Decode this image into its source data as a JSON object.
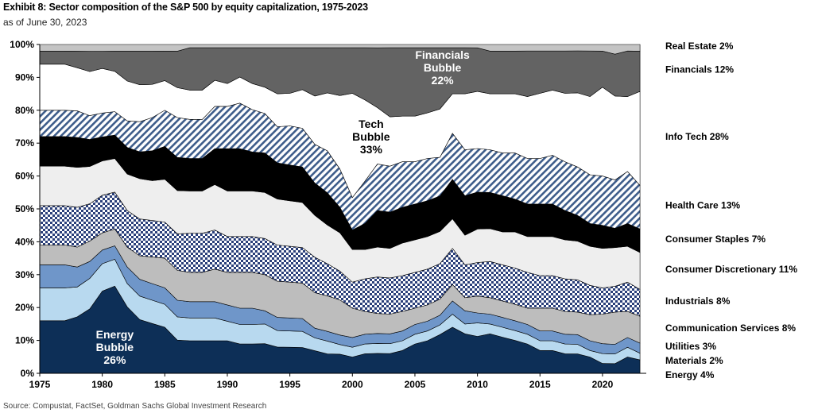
{
  "header": {
    "title": "Exhibit 8: Sector composition of the S&P 500 by equity capitalization, 1975-2023",
    "subtitle": "as of June 30, 2023"
  },
  "footer": {
    "source": "Source: Compustat, FactSet, Goldman Sachs Global Investment Research"
  },
  "chart_data": {
    "type": "area",
    "stacked": true,
    "x_ticks": [
      "1975",
      "1980",
      "1985",
      "1990",
      "1995",
      "2000",
      "2005",
      "2010",
      "2015",
      "2020"
    ],
    "y_ticks": [
      "0%",
      "10%",
      "20%",
      "30%",
      "40%",
      "50%",
      "60%",
      "70%",
      "80%",
      "90%",
      "100%"
    ],
    "xlim": [
      1975,
      2023.5
    ],
    "ylim": [
      0,
      100
    ],
    "legend_position": "right",
    "x": [
      1975,
      1976,
      1977,
      1978,
      1979,
      1980,
      1981,
      1982,
      1983,
      1984,
      1985,
      1986,
      1987,
      1988,
      1989,
      1990,
      1991,
      1992,
      1993,
      1994,
      1995,
      1996,
      1997,
      1998,
      1999,
      2000,
      2001,
      2002,
      2003,
      2004,
      2005,
      2006,
      2007,
      2008,
      2009,
      2010,
      2011,
      2012,
      2013,
      2014,
      2015,
      2016,
      2017,
      2018,
      2019,
      2020,
      2021,
      2022,
      2023
    ],
    "series": [
      {
        "name": "Energy 4%",
        "color": "#0d2f57",
        "pattern": "solid",
        "values": [
          16,
          16,
          16,
          17,
          19,
          24,
          26,
          20,
          16,
          15,
          14,
          10,
          10,
          10,
          10,
          10,
          9,
          9,
          9,
          8,
          8,
          8,
          7,
          6,
          6,
          5,
          6,
          6,
          6,
          7,
          9,
          10,
          12,
          14,
          12,
          11,
          12,
          11,
          10,
          9,
          7,
          7,
          6,
          6,
          5,
          3,
          3,
          5,
          4
        ]
      },
      {
        "name": "Materials 2%",
        "color": "#b8d9ef",
        "pattern": "solid",
        "values": [
          10,
          10,
          10,
          9,
          9,
          8,
          8,
          7,
          7,
          7,
          7,
          7,
          7,
          7,
          7,
          6,
          6,
          6,
          6,
          5,
          5,
          5,
          4,
          4,
          3,
          3,
          3,
          3,
          3,
          3,
          3,
          3,
          3,
          4,
          3,
          4,
          3,
          3,
          3,
          3,
          3,
          3,
          3,
          3,
          2,
          3,
          3,
          3,
          2
        ]
      },
      {
        "name": "Utilities 3%",
        "color": "#6f96c9",
        "pattern": "solid",
        "values": [
          7,
          7,
          7,
          6,
          5,
          4,
          4,
          5,
          5,
          5,
          5,
          5,
          5,
          5,
          5,
          5,
          5,
          5,
          4,
          4,
          4,
          4,
          3,
          3,
          3,
          3,
          3,
          3,
          3,
          3,
          3,
          3,
          3,
          4,
          4,
          3,
          3,
          3,
          3,
          3,
          3,
          3,
          3,
          3,
          3,
          3,
          3,
          3,
          3
        ]
      },
      {
        "name": "Communication Services 8%",
        "color": "#bdbdbd",
        "pattern": "solid",
        "values": [
          6,
          6,
          6,
          6,
          6,
          5,
          5,
          6,
          7,
          8,
          9,
          9,
          9,
          9,
          10,
          10,
          11,
          11,
          11,
          11,
          11,
          11,
          11,
          11,
          11,
          9,
          7,
          6,
          6,
          6,
          5,
          5,
          5,
          5,
          4,
          5,
          5,
          5,
          5,
          5,
          7,
          7,
          7,
          7,
          8,
          9,
          10,
          8,
          8
        ]
      },
      {
        "name": "Industrials 8%",
        "color": "#2a3f7a",
        "pattern": "check",
        "values": [
          12,
          12,
          12,
          12,
          11,
          11,
          11,
          11,
          11,
          11,
          11,
          11,
          12,
          12,
          12,
          11,
          11,
          11,
          11,
          11,
          11,
          11,
          11,
          10,
          9,
          8,
          10,
          11,
          11,
          11,
          11,
          11,
          11,
          11,
          10,
          10,
          11,
          11,
          11,
          11,
          10,
          10,
          10,
          10,
          9,
          8,
          8,
          9,
          8
        ]
      },
      {
        "name": "Consumer Discretionary 11%",
        "color": "#eeeeee",
        "pattern": "solid",
        "values": [
          12,
          12,
          12,
          12,
          11,
          10,
          10,
          11,
          12,
          12,
          13,
          13,
          13,
          13,
          14,
          14,
          14,
          14,
          14,
          14,
          14,
          14,
          13,
          12,
          12,
          10,
          9,
          9,
          9,
          10,
          10,
          10,
          10,
          9,
          9,
          10,
          10,
          10,
          11,
          11,
          12,
          12,
          12,
          12,
          12,
          12,
          12,
          11,
          11
        ]
      },
      {
        "name": "Consumer Staples 7%",
        "color": "#000000",
        "pattern": "solid",
        "values": [
          9,
          9,
          9,
          9,
          8,
          7,
          7,
          8,
          8,
          9,
          10,
          10,
          10,
          10,
          11,
          13,
          13,
          12,
          12,
          11,
          11,
          11,
          10,
          10,
          8,
          6,
          8,
          11,
          11,
          11,
          11,
          11,
          11,
          12,
          12,
          11,
          11,
          11,
          10,
          10,
          10,
          10,
          9,
          8,
          7,
          7,
          6,
          7,
          7
        ]
      },
      {
        "name": "Health Care 13%",
        "color": "#1e3b66",
        "pattern": "stripe",
        "values": [
          8,
          8,
          8,
          8,
          7,
          7,
          7,
          8,
          9,
          10,
          11,
          12,
          12,
          12,
          13,
          13,
          14,
          13,
          12,
          11,
          12,
          12,
          12,
          13,
          12,
          10,
          13,
          14,
          14,
          14,
          13,
          13,
          12,
          14,
          14,
          13,
          13,
          13,
          14,
          14,
          14,
          15,
          15,
          15,
          15,
          15,
          15,
          16,
          13
        ]
      },
      {
        "name": "Info Tech 28%",
        "color": "#ffffff",
        "pattern": "solid",
        "values": [
          14,
          14,
          14,
          13,
          13,
          13,
          12,
          12,
          11,
          10,
          9,
          9,
          9,
          9,
          8,
          7,
          8,
          8,
          8,
          10,
          10,
          12,
          15,
          18,
          23,
          32,
          25,
          17,
          15,
          14,
          14,
          14,
          15,
          12,
          17,
          17,
          17,
          18,
          18,
          19,
          20,
          20,
          21,
          23,
          24,
          27,
          26,
          23,
          28
        ]
      },
      {
        "name": "Financials 12%",
        "color": "#636363",
        "pattern": "solid",
        "values": [
          4,
          4,
          4,
          5,
          6,
          5,
          6,
          9,
          10,
          10,
          9,
          11,
          13,
          13,
          10,
          11,
          9,
          11,
          12,
          14,
          14,
          13,
          15,
          14,
          15,
          14,
          16,
          18,
          21,
          21,
          21,
          20,
          19,
          14,
          14,
          13,
          13,
          13,
          13,
          14,
          13,
          12,
          13,
          13,
          14,
          11,
          13,
          14,
          12
        ]
      },
      {
        "name": "Real Estate 2%",
        "color": "#c4c4c4",
        "pattern": "solid",
        "values": [
          2,
          2,
          2,
          2,
          2,
          2,
          2,
          2,
          2,
          2,
          2,
          2,
          1,
          1,
          1,
          1,
          1,
          1,
          1,
          1,
          1,
          1,
          1,
          1,
          1,
          1,
          1,
          1,
          1,
          1,
          1,
          1,
          1,
          1,
          1,
          1,
          2,
          2,
          2,
          2,
          2,
          2,
          2,
          2,
          2,
          2,
          3,
          2,
          2
        ]
      }
    ],
    "annotations": [
      {
        "lines": [
          "Energy",
          "Bubble",
          "26%"
        ],
        "x": 1981,
        "y": 8,
        "color": "#ffffff"
      },
      {
        "lines": [
          "Tech",
          "Bubble",
          "33%"
        ],
        "x": 2001.5,
        "y": 72,
        "color": "#000000"
      },
      {
        "lines": [
          "Financials",
          "Bubble",
          "22%"
        ],
        "x": 2007.2,
        "y": 93,
        "color": "#ffffff"
      }
    ]
  }
}
